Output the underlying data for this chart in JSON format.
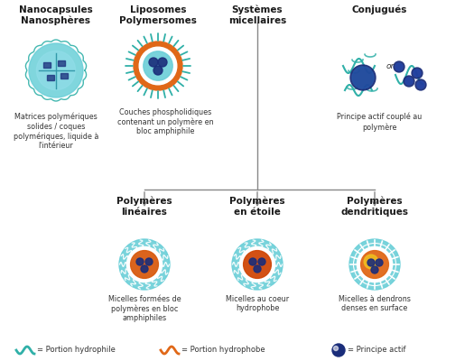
{
  "title_top_left": "Nanocapsules\nNanosphères",
  "title_top_center_left": "Liposomes\nPolymersomes",
  "title_top_center_right": "Systèmes\nmicellaires",
  "title_top_right": "Conjugués",
  "desc_top_left": "Matrices polymériques\nsolides / coques\npolymériques, liquide à\nl'intérieur",
  "desc_top_center": "Couches phospholidiques\ncontenant un polymère en\nbloc amphiphile",
  "desc_top_right": "Principe actif couplé au\npolymère",
  "title_bot_left": "Polymères\nlinéaires",
  "title_bot_center": "Polymères\nen étoile",
  "title_bot_right": "Polymères\ndendritiques",
  "desc_bot_left": "Micelles formées de\npolymères en bloc\namphiphiles",
  "desc_bot_center": "Micelles au coeur\nhydrophobe",
  "desc_bot_right": "Micelles à dendrons\ndenses en surface",
  "legend_1": "= Portion hydrophile",
  "legend_2": "= Portion hydrophobe",
  "legend_3": "= Principe actif",
  "bg_color": "#ffffff",
  "line_color": "#888888",
  "title_color": "#1a1a1a",
  "text_color": "#333333",
  "cyan_light": "#6acfd8",
  "cyan_outer": "#5bc0ca",
  "orange_color": "#e06818",
  "blue_dark": "#1a2d7a",
  "blue_medium": "#2255aa",
  "teal_color": "#30b0a8",
  "yellow_color": "#f0c020",
  "white": "#ffffff"
}
